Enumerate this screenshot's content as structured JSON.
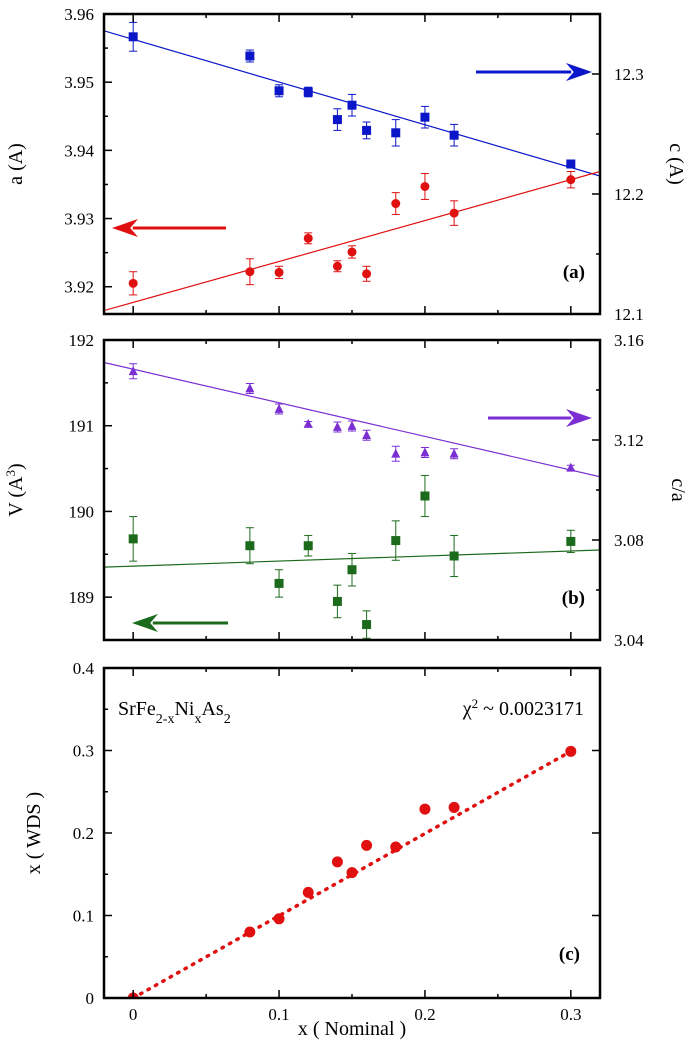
{
  "colors": {
    "blue": "#0b16c8",
    "red": "#e01010",
    "purple": "#7b2fd3",
    "green": "#1c6a1c",
    "black": "#000000"
  },
  "x_axis": {
    "label": "x ( Nominal )",
    "ticks": [
      "0",
      "0.1",
      "0.2",
      "0.3"
    ],
    "xlim": [
      -0.02,
      0.32
    ]
  },
  "chart_data": [
    {
      "panel": "(a)",
      "type": "scatter",
      "ylabel": "a (A)",
      "ylabel_right": "c (A)",
      "ylim": [
        3.916,
        3.96
      ],
      "ylim_right": [
        12.1,
        12.35
      ],
      "yticks": [
        "3.92",
        "3.93",
        "3.94",
        "3.95",
        "3.96"
      ],
      "yticks_right": [
        "12.1",
        "12.2",
        "12.3"
      ],
      "arrows": [
        {
          "direction": "right",
          "color": "blue"
        },
        {
          "direction": "left",
          "color": "red"
        }
      ],
      "series": [
        {
          "axis": "right",
          "marker": "square",
          "color": "blue",
          "x": [
            0,
            0.08,
            0.1,
            0.12,
            0.14,
            0.15,
            0.16,
            0.18,
            0.2,
            0.22,
            0.3
          ],
          "y": [
            12.331,
            12.315,
            12.286,
            12.285,
            12.262,
            12.274,
            12.253,
            12.251,
            12.264,
            12.249,
            12.225
          ],
          "err": [
            0.012,
            0.005,
            0.005,
            0.004,
            0.009,
            0.009,
            0.007,
            0.011,
            0.009,
            0.009,
            0.002
          ],
          "fit": {
            "x": [
              -0.02,
              0.32
            ],
            "y": [
              12.336,
              12.215
            ]
          }
        },
        {
          "axis": "left",
          "marker": "circle",
          "color": "red",
          "x": [
            0,
            0.08,
            0.1,
            0.12,
            0.14,
            0.15,
            0.16,
            0.18,
            0.2,
            0.22,
            0.3
          ],
          "y": [
            3.9205,
            3.9222,
            3.9221,
            3.9271,
            3.923,
            3.9251,
            3.9219,
            3.9322,
            3.9347,
            3.9308,
            3.9357
          ],
          "err": [
            0.0017,
            0.0019,
            0.0009,
            0.0008,
            0.0008,
            0.0009,
            0.0011,
            0.0016,
            0.0019,
            0.0018,
            0.0012
          ],
          "fit": {
            "x": [
              -0.02,
              0.32
            ],
            "y": [
              3.9165,
              3.9369
            ]
          }
        }
      ]
    },
    {
      "panel": "(b)",
      "type": "scatter",
      "ylabel": "V (A3)",
      "ylabel_right": "c/a",
      "ylim": [
        188.5,
        192
      ],
      "ylim_right": [
        3.04,
        3.16
      ],
      "yticks": [
        "189",
        "190",
        "191",
        "192"
      ],
      "yticks_right": [
        "3.04",
        "3.08",
        "3.12",
        "3.16"
      ],
      "arrows": [
        {
          "direction": "right",
          "color": "purple"
        },
        {
          "direction": "left",
          "color": "green"
        }
      ],
      "series": [
        {
          "axis": "right",
          "marker": "triangle",
          "color": "purple",
          "x": [
            0,
            0.08,
            0.1,
            0.12,
            0.14,
            0.15,
            0.16,
            0.18,
            0.2,
            0.22,
            0.3
          ],
          "y": [
            3.1475,
            3.1406,
            3.1324,
            3.1264,
            3.1252,
            3.1256,
            3.1219,
            3.1145,
            3.115,
            3.1145,
            3.1089
          ],
          "err": [
            0.003,
            0.002,
            0.002,
            0.001,
            0.002,
            0.002,
            0.002,
            0.003,
            0.002,
            0.002,
            0.001
          ],
          "fit": {
            "x": [
              -0.02,
              0.32
            ],
            "y": [
              3.151,
              3.1053
            ]
          }
        },
        {
          "axis": "left",
          "marker": "square",
          "color": "green",
          "x": [
            0,
            0.08,
            0.1,
            0.12,
            0.14,
            0.15,
            0.16,
            0.18,
            0.2,
            0.22,
            0.3
          ],
          "y": [
            189.68,
            189.6,
            189.16,
            189.6,
            188.95,
            189.32,
            188.68,
            189.66,
            190.18,
            189.48,
            189.65
          ],
          "err": [
            0.26,
            0.21,
            0.16,
            0.12,
            0.19,
            0.19,
            0.16,
            0.23,
            0.24,
            0.24,
            0.13
          ],
          "fit": {
            "x": [
              -0.02,
              0.32
            ],
            "y": [
              189.35,
              189.55
            ]
          }
        }
      ]
    },
    {
      "panel": "(c)",
      "type": "scatter",
      "ylabel": "x ( WDS )",
      "ylim": [
        0,
        0.4
      ],
      "yticks": [
        "0",
        "0.1",
        "0.2",
        "0.3",
        "0.4"
      ],
      "annotation_left": "SrFe2-xNixAs2",
      "annotation_right": "χ2 ~ 0.0023171",
      "series": [
        {
          "axis": "left",
          "marker": "circle",
          "color": "red",
          "x": [
            0,
            0.08,
            0.1,
            0.12,
            0.14,
            0.15,
            0.16,
            0.18,
            0.2,
            0.22,
            0.3
          ],
          "y": [
            0.0,
            0.08,
            0.096,
            0.128,
            0.165,
            0.152,
            0.185,
            0.183,
            0.229,
            0.231,
            0.299
          ],
          "fit": {
            "x": [
              0,
              0.3
            ],
            "y": [
              0.0,
              0.299
            ],
            "style": "dotted"
          }
        }
      ]
    }
  ]
}
